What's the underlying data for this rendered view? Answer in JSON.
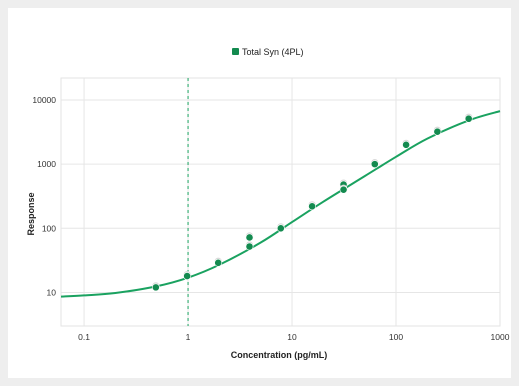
{
  "chart_data": {
    "type": "scatter",
    "title": "",
    "xlabel": "Concentration (pg/mL)",
    "ylabel": "Response",
    "xscale": "log",
    "yscale": "log",
    "xlim": [
      0.06,
      1000
    ],
    "ylim": [
      3,
      22000
    ],
    "x_ticks": [
      {
        "value": 0.1,
        "label": "0.1"
      },
      {
        "value": 1,
        "label": "1"
      },
      {
        "value": 10,
        "label": "10"
      },
      {
        "value": 100,
        "label": "100"
      },
      {
        "value": 1000,
        "label": "1000"
      }
    ],
    "y_ticks": [
      {
        "value": 10,
        "label": "10"
      },
      {
        "value": 100,
        "label": "100"
      },
      {
        "value": 1000,
        "label": "1000"
      },
      {
        "value": 10000,
        "label": "10000"
      }
    ],
    "grid": true,
    "legend_position": "top-center",
    "reference_line_x": 1,
    "series": [
      {
        "name": "Total Syn (4PL)",
        "color": "#1aa260",
        "marker_color": "#138a4f",
        "points": [
          {
            "x": 0.49,
            "y": 12
          },
          {
            "x": 0.98,
            "y": 18
          },
          {
            "x": 1.95,
            "y": 29
          },
          {
            "x": 3.9,
            "y": 72
          },
          {
            "x": 3.9,
            "y": 52
          },
          {
            "x": 7.8,
            "y": 100
          },
          {
            "x": 15.6,
            "y": 220
          },
          {
            "x": 31.3,
            "y": 480
          },
          {
            "x": 31.3,
            "y": 400
          },
          {
            "x": 62.5,
            "y": 1000
          },
          {
            "x": 125,
            "y": 2000
          },
          {
            "x": 250,
            "y": 3200
          },
          {
            "x": 500,
            "y": 5100
          }
        ],
        "fit_curve": {
          "model": "4PL",
          "x_range": [
            0.06,
            1000
          ],
          "samples": [
            {
              "x": 0.06,
              "y": 8.6
            },
            {
              "x": 0.1,
              "y": 9.0
            },
            {
              "x": 0.2,
              "y": 9.8
            },
            {
              "x": 0.5,
              "y": 12.5
            },
            {
              "x": 1,
              "y": 17
            },
            {
              "x": 2,
              "y": 27
            },
            {
              "x": 5,
              "y": 60
            },
            {
              "x": 10,
              "y": 125
            },
            {
              "x": 20,
              "y": 260
            },
            {
              "x": 50,
              "y": 650
            },
            {
              "x": 100,
              "y": 1300
            },
            {
              "x": 200,
              "y": 2500
            },
            {
              "x": 500,
              "y": 4800
            },
            {
              "x": 1000,
              "y": 6700
            }
          ]
        }
      }
    ]
  }
}
